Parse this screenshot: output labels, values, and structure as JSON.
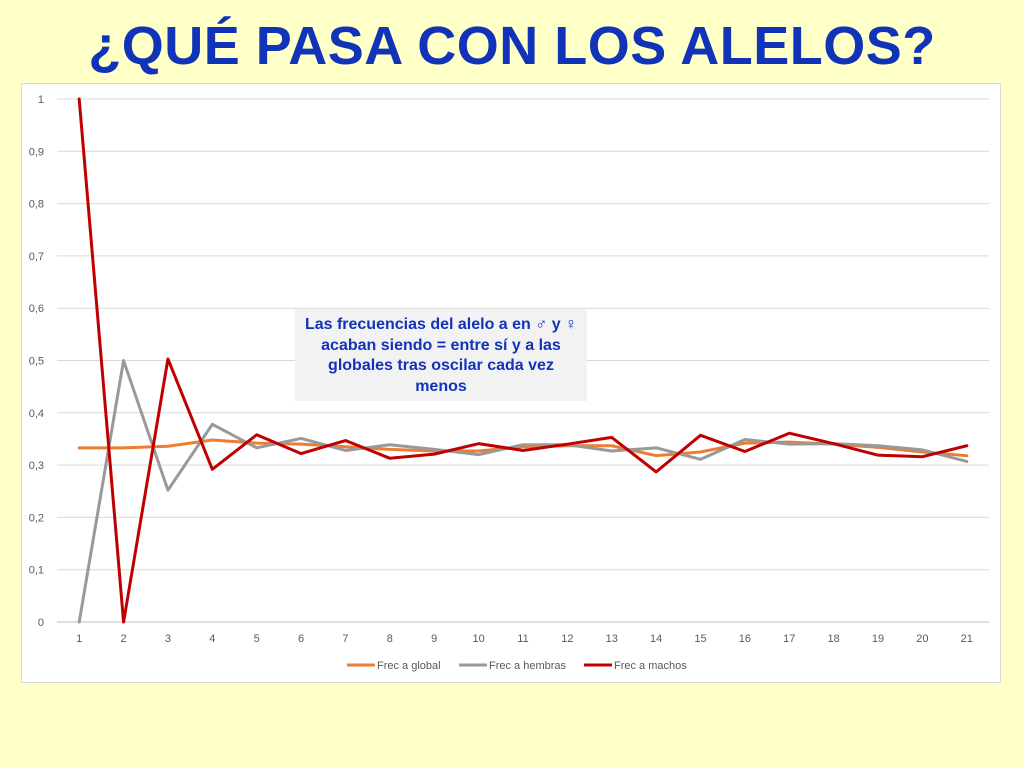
{
  "slide": {
    "title": "¿QUÉ PASA CON LOS ALELOS?"
  },
  "annotation": {
    "text": "Las frecuencias del alelo a en ♂ y ♀ acaban siendo = entre sí y a las globales tras oscilar cada vez menos"
  },
  "chart_data": {
    "type": "line",
    "title": "",
    "xlabel": "",
    "ylabel": "",
    "x": [
      1,
      2,
      3,
      4,
      5,
      6,
      7,
      8,
      9,
      10,
      11,
      12,
      13,
      14,
      15,
      16,
      17,
      18,
      19,
      20,
      21
    ],
    "ylim": [
      0,
      1
    ],
    "yticks": [
      0,
      0.1,
      0.2,
      0.3,
      0.4,
      0.5,
      0.6,
      0.7,
      0.8,
      0.9,
      1
    ],
    "ytick_labels": [
      "0",
      "0,1",
      "0,2",
      "0,3",
      "0,4",
      "0,5",
      "0,6",
      "0,7",
      "0,8",
      "0,9",
      "1"
    ],
    "grid": true,
    "legend_position": "bottom",
    "series": [
      {
        "name": "Frec a global",
        "color": "#ed7d31",
        "values": [
          0.333,
          0.333,
          0.336,
          0.348,
          0.342,
          0.34,
          0.335,
          0.33,
          0.327,
          0.327,
          0.335,
          0.337,
          0.337,
          0.318,
          0.325,
          0.342,
          0.344,
          0.34,
          0.334,
          0.325,
          0.318
        ]
      },
      {
        "name": "Frec a hembras",
        "color": "#999999",
        "values": [
          0.0,
          0.5,
          0.252,
          0.378,
          0.333,
          0.351,
          0.328,
          0.339,
          0.33,
          0.32,
          0.339,
          0.339,
          0.327,
          0.333,
          0.311,
          0.349,
          0.34,
          0.341,
          0.337,
          0.329,
          0.307
        ]
      },
      {
        "name": "Frec a machos",
        "color": "#c00000",
        "values": [
          1.0,
          0.0,
          0.503,
          0.292,
          0.358,
          0.322,
          0.347,
          0.313,
          0.321,
          0.341,
          0.328,
          0.34,
          0.353,
          0.287,
          0.357,
          0.326,
          0.361,
          0.341,
          0.319,
          0.316,
          0.337
        ]
      }
    ]
  }
}
